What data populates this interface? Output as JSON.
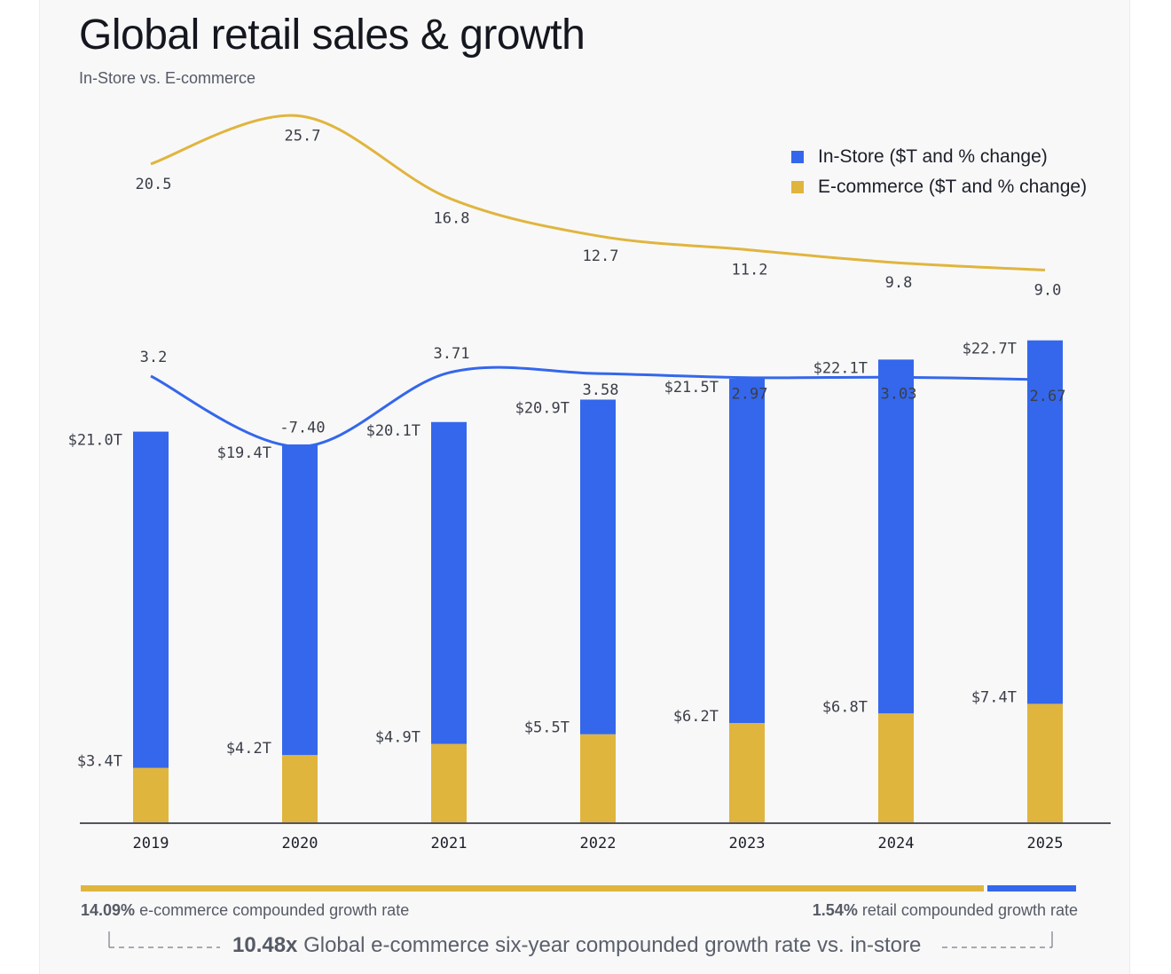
{
  "header": {
    "title": "Global retail sales & growth",
    "subtitle": "In-Store vs. E-commerce"
  },
  "legend": {
    "instore": "In-Store ($T and % change)",
    "ecommerce": "E-commerce ($T and % change)"
  },
  "colors": {
    "instore": "#3467eb",
    "ecommerce": "#e0b53e",
    "axis": "#1c1f2a",
    "label": "#3a3e48"
  },
  "footer": {
    "ecommerce_rate_value": "14.09%",
    "ecommerce_rate_text": " e-commerce compounded growth rate",
    "retail_rate_value": "1.54%",
    "retail_rate_text": " retail compounded growth rate",
    "summary_value": "10.48x",
    "summary_text": " Global e-commerce six-year compounded growth rate vs. in-store"
  },
  "chart_data": {
    "type": "bar",
    "stacked": true,
    "categories": [
      "2019",
      "2020",
      "2021",
      "2022",
      "2023",
      "2024",
      "2025"
    ],
    "series": [
      {
        "name": "In-Store ($T and % change)",
        "values": [
          21.0,
          19.4,
          20.1,
          20.9,
          21.5,
          22.1,
          22.7
        ],
        "labels": [
          "$21.0T",
          "$19.4T",
          "$20.1T",
          "$20.9T",
          "$21.5T",
          "$22.1T",
          "$22.7T"
        ],
        "pct_change": [
          3.2,
          -7.4,
          3.71,
          3.58,
          2.97,
          3.03,
          2.67
        ],
        "pct_labels": [
          "3.2",
          "-7.40",
          "3.71",
          "3.58",
          "2.97",
          "3.03",
          "2.67"
        ]
      },
      {
        "name": "E-commerce ($T and % change)",
        "values": [
          3.4,
          4.2,
          4.9,
          5.5,
          6.2,
          6.8,
          7.4
        ],
        "labels": [
          "$3.4T",
          "$4.2T",
          "$4.9T",
          "$5.5T",
          "$6.2T",
          "$6.8T",
          "$7.4T"
        ],
        "pct_change": [
          20.5,
          25.7,
          16.8,
          12.7,
          11.2,
          9.8,
          9.0
        ],
        "pct_labels": [
          "20.5",
          "25.7",
          "16.8",
          "12.7",
          "11.2",
          "9.8",
          "9.0"
        ]
      }
    ],
    "legend_position": "top-right",
    "grid": false
  }
}
